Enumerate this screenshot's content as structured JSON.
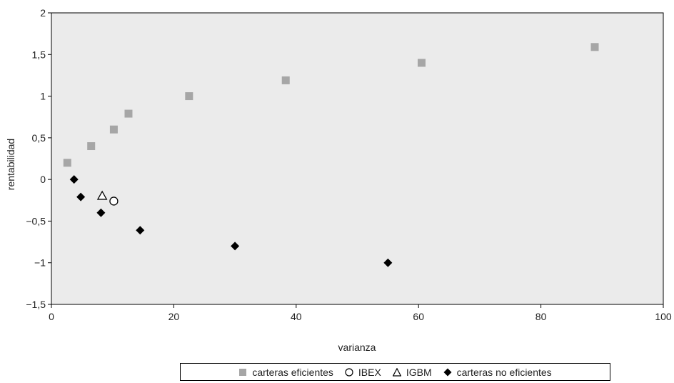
{
  "chart_data": {
    "type": "scatter",
    "xlabel": "varianza",
    "ylabel": "rentabilidad",
    "xlim": [
      0,
      100
    ],
    "ylim": [
      -1.5,
      2
    ],
    "x_ticks": [
      0,
      20,
      40,
      60,
      80,
      100
    ],
    "x_tick_labels": [
      "0",
      "20",
      "40",
      "60",
      "80",
      "100"
    ],
    "y_ticks": [
      -1.5,
      -1,
      -0.5,
      0,
      0.5,
      1,
      1.5,
      2
    ],
    "y_tick_labels": [
      "−1,5",
      "−1",
      "−0,5",
      "0",
      "0,5",
      "1",
      "1,5",
      "2"
    ],
    "grid": false,
    "plot_background": "#ebebeb",
    "legend_position": "bottom",
    "series": [
      {
        "name": "carteras eficientes",
        "marker": "square",
        "color": "#a6a6a6",
        "points": [
          {
            "x": 2.6,
            "y": 0.2
          },
          {
            "x": 6.5,
            "y": 0.4
          },
          {
            "x": 10.2,
            "y": 0.6
          },
          {
            "x": 12.6,
            "y": 0.79
          },
          {
            "x": 22.5,
            "y": 1.0
          },
          {
            "x": 38.3,
            "y": 1.19
          },
          {
            "x": 60.5,
            "y": 1.4
          },
          {
            "x": 88.8,
            "y": 1.59
          }
        ]
      },
      {
        "name": "IBEX",
        "marker": "circle-open",
        "color": "#000000",
        "points": [
          {
            "x": 10.2,
            "y": -0.26
          }
        ]
      },
      {
        "name": "IGBM",
        "marker": "triangle-open",
        "color": "#000000",
        "points": [
          {
            "x": 8.3,
            "y": -0.2
          }
        ]
      },
      {
        "name": "carteras no eficientes",
        "marker": "diamond",
        "color": "#000000",
        "points": [
          {
            "x": 3.7,
            "y": 0.0
          },
          {
            "x": 4.8,
            "y": -0.21
          },
          {
            "x": 8.1,
            "y": -0.4
          },
          {
            "x": 14.5,
            "y": -0.61
          },
          {
            "x": 30.0,
            "y": -0.8
          },
          {
            "x": 55.0,
            "y": -1.0
          }
        ]
      }
    ]
  }
}
